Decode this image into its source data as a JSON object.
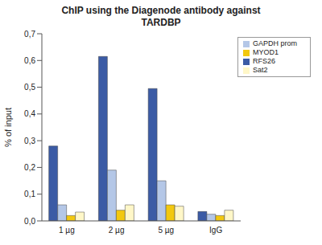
{
  "chart_data": {
    "type": "bar",
    "title": "ChIP using the Diagenode antibody against TARDBP",
    "y_label": "% of input",
    "categories": [
      "1 µg",
      "2 µg",
      "5 µg",
      "IgG"
    ],
    "series": [
      {
        "name": "RFS26",
        "color": "#3b5ba5",
        "values": [
          0.28,
          0.615,
          0.495,
          0.035
        ]
      },
      {
        "name": "GAPDH prom",
        "color": "#b4c7e7",
        "values": [
          0.06,
          0.19,
          0.15,
          0.025
        ]
      },
      {
        "name": "MYOD1",
        "color": "#f2c80f",
        "values": [
          0.02,
          0.04,
          0.06,
          0.02
        ]
      },
      {
        "name": "Sat2",
        "color": "#fff7c8",
        "values": [
          0.033,
          0.06,
          0.055,
          0.04
        ]
      }
    ],
    "ylim": [
      0,
      0.7
    ],
    "yticks": [
      {
        "value": 0,
        "label": "0,0"
      },
      {
        "value": 0.1,
        "label": "0,1"
      },
      {
        "value": 0.2,
        "label": "0,2"
      },
      {
        "value": 0.3,
        "label": "0,3"
      },
      {
        "value": 0.4,
        "label": "0,4"
      },
      {
        "value": 0.5,
        "label": "0,5"
      },
      {
        "value": 0.6,
        "label": "0,6"
      },
      {
        "value": 0.7,
        "label": "0,7"
      }
    ],
    "legend": "upper right",
    "grid": false
  }
}
